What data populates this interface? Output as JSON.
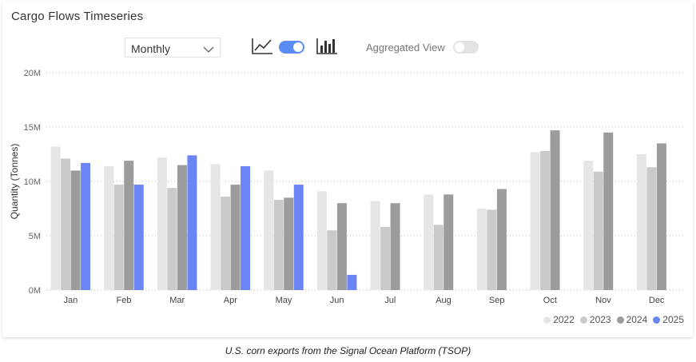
{
  "panel": {
    "title": "Cargo Flows Timeseries",
    "period_select": {
      "value": "Monthly"
    },
    "line_view_icon": "line-chart-icon",
    "bar_view_icon": "bar-chart-icon",
    "view_toggle_on": true,
    "aggregated_label": "Aggregated View",
    "aggregated_on": false
  },
  "colors": {
    "2022": "#e6e6e6",
    "2023": "#cacaca",
    "2024": "#9c9c9c",
    "2025": "#6b85f5",
    "toggle_on": "#5a8cf5",
    "toggle_off": "#e3e3e3"
  },
  "caption": "U.S. corn exports from the Signal Ocean Platform (TSOP)",
  "chart_data": {
    "type": "bar",
    "ylabel": "Quantity (Tonnes)",
    "ylim": [
      0,
      20000000
    ],
    "yticks": [
      0,
      5000000,
      10000000,
      15000000,
      20000000
    ],
    "ytick_labels": [
      "0M",
      "5M",
      "10M",
      "15M",
      "20M"
    ],
    "grid": true,
    "legend_position": "bottom-right",
    "categories": [
      "Jan",
      "Feb",
      "Mar",
      "Apr",
      "May",
      "Jun",
      "Jul",
      "Aug",
      "Sep",
      "Oct",
      "Nov",
      "Dec"
    ],
    "series": [
      {
        "name": "2022",
        "values": [
          13200000,
          11400000,
          12200000,
          11600000,
          11000000,
          9100000,
          8200000,
          8800000,
          7500000,
          12700000,
          11900000,
          12500000
        ]
      },
      {
        "name": "2023",
        "values": [
          12100000,
          9700000,
          9400000,
          8600000,
          8300000,
          5500000,
          5800000,
          6000000,
          7400000,
          12800000,
          10900000,
          11300000
        ]
      },
      {
        "name": "2024",
        "values": [
          11000000,
          11900000,
          11500000,
          9700000,
          8500000,
          8000000,
          8000000,
          8800000,
          9300000,
          14700000,
          14500000,
          13500000
        ]
      },
      {
        "name": "2025",
        "values": [
          11700000,
          9700000,
          12400000,
          11400000,
          9700000,
          1400000,
          null,
          null,
          null,
          null,
          null,
          null
        ]
      }
    ]
  }
}
